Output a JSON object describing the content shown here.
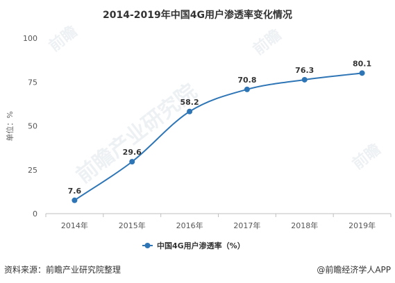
{
  "colors": {
    "series": "#2e75b6",
    "axis": "#bfbfbf",
    "text": "#333333",
    "tick": "#555555",
    "watermark": "#eef1f4"
  },
  "chart_data": {
    "type": "line",
    "title": "2014-2019年中国4G用户渗透率变化情况",
    "ylabel": "单位：%",
    "xlabel": "",
    "categories": [
      "2014年",
      "2015年",
      "2016年",
      "2017年",
      "2018年",
      "2019年"
    ],
    "series": [
      {
        "name": "中国4G用户渗透率（%）",
        "values": [
          7.6,
          29.6,
          58.2,
          70.8,
          76.3,
          80.1
        ],
        "value_labels": [
          "7.6",
          "29.6",
          "58.2",
          "70.8",
          "76.3",
          "80.1"
        ]
      }
    ],
    "ylim": [
      0,
      100
    ],
    "yticks": [
      "0",
      "25",
      "50",
      "75",
      "100"
    ],
    "ytick_values": [
      0,
      25,
      50,
      75,
      100
    ],
    "grid": false,
    "smooth": true,
    "legend_position": "bottom-center"
  },
  "footer": {
    "source": "资料来源：前瞻产业研究院整理",
    "brand": "@前瞻经济学人APP"
  },
  "watermark": {
    "text": "前瞻产业研究院",
    "small_text": "前瞻"
  }
}
